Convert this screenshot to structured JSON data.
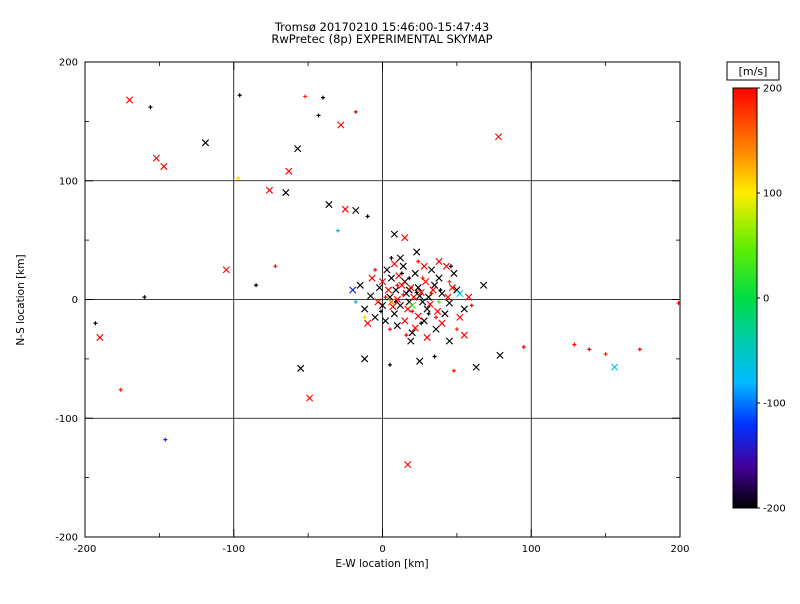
{
  "page": {
    "background": "#ffffff"
  },
  "chart_data": {
    "type": "scatter",
    "title": "Tromsø 20170210 15:46:00-15:47:43",
    "subtitle": "RwPretec (8p) EXPERIMENTAL SKYMAP",
    "xlabel": "E-W location [km]",
    "ylabel": "N-S location [km]",
    "xlim": [
      -200,
      200
    ],
    "ylim": [
      -200,
      200
    ],
    "xticks": [
      -200,
      -100,
      0,
      100,
      200
    ],
    "yticks": [
      -200,
      -100,
      0,
      100,
      200
    ],
    "minor_tick_step": 50,
    "grid_lines": [
      -100,
      0,
      100
    ],
    "grid": true,
    "axis_color": "#000000",
    "colorbar": {
      "label": "[m/s]",
      "min": -200,
      "max": 200,
      "ticks": [
        200,
        100,
        0,
        -100,
        -200
      ],
      "text_color": "#cc0000",
      "stops": [
        {
          "t": -200,
          "c": "#000000"
        },
        {
          "t": -160,
          "c": "#44009a"
        },
        {
          "t": -120,
          "c": "#0033ff"
        },
        {
          "t": -80,
          "c": "#00bbff"
        },
        {
          "t": -40,
          "c": "#00ccaa"
        },
        {
          "t": 0,
          "c": "#00dd44"
        },
        {
          "t": 50,
          "c": "#66ee00"
        },
        {
          "t": 100,
          "c": "#ffee00"
        },
        {
          "t": 140,
          "c": "#ff8800"
        },
        {
          "t": 200,
          "c": "#ff0000"
        }
      ]
    },
    "points": [
      [
        5,
        2,
        -200,
        "x"
      ],
      [
        12,
        -5,
        -200,
        "x"
      ],
      [
        18,
        8,
        -200,
        "x"
      ],
      [
        25,
        3,
        -200,
        "x"
      ],
      [
        8,
        -12,
        -200,
        "x"
      ],
      [
        30,
        -8,
        -200,
        "x"
      ],
      [
        15,
        15,
        -200,
        "x"
      ],
      [
        22,
        22,
        -200,
        "x"
      ],
      [
        -2,
        10,
        -200,
        "x"
      ],
      [
        35,
        12,
        -200,
        "x"
      ],
      [
        10,
        -22,
        -200,
        "x"
      ],
      [
        28,
        -18,
        -200,
        "x"
      ],
      [
        40,
        5,
        -200,
        "x"
      ],
      [
        0,
        -5,
        -200,
        "x"
      ],
      [
        18,
        -2,
        -200,
        "x"
      ],
      [
        24,
        10,
        -200,
        "x"
      ],
      [
        6,
        18,
        -200,
        "x"
      ],
      [
        33,
        25,
        -200,
        "x"
      ],
      [
        14,
        28,
        -200,
        "x"
      ],
      [
        -8,
        3,
        -200,
        "x"
      ],
      [
        45,
        -3,
        -200,
        "x"
      ],
      [
        38,
        18,
        -200,
        "x"
      ],
      [
        2,
        -18,
        -200,
        "x"
      ],
      [
        20,
        -28,
        -200,
        "x"
      ],
      [
        -12,
        -8,
        -200,
        "x"
      ],
      [
        50,
        8,
        -200,
        "x"
      ],
      [
        27,
        -2,
        -200,
        "x"
      ],
      [
        16,
        5,
        -200,
        "x"
      ],
      [
        9,
        8,
        -200,
        "x"
      ],
      [
        31,
        2,
        -200,
        "x"
      ],
      [
        -5,
        -15,
        -200,
        "x"
      ],
      [
        42,
        -12,
        -200,
        "x"
      ],
      [
        36,
        -25,
        -200,
        "x"
      ],
      [
        12,
        35,
        -200,
        "x"
      ],
      [
        23,
        40,
        -200,
        "x"
      ],
      [
        -15,
        12,
        -200,
        "x"
      ],
      [
        55,
        -8,
        -200,
        "x"
      ],
      [
        48,
        22,
        -200,
        "x"
      ],
      [
        3,
        25,
        -200,
        "x"
      ],
      [
        19,
        -35,
        -200,
        "x"
      ],
      [
        8,
        55,
        -200,
        "x"
      ],
      [
        45,
        -35,
        -200,
        "x"
      ],
      [
        -12,
        -50,
        -200,
        "x"
      ],
      [
        25,
        -52,
        -200,
        "x"
      ],
      [
        63,
        -57,
        -200,
        "x"
      ],
      [
        68,
        12,
        -200,
        "x"
      ],
      [
        10,
        0,
        200,
        "x"
      ],
      [
        17,
        -8,
        200,
        "x"
      ],
      [
        26,
        6,
        200,
        "x"
      ],
      [
        13,
        12,
        200,
        "x"
      ],
      [
        32,
        -4,
        200,
        "x"
      ],
      [
        7,
        -6,
        200,
        "x"
      ],
      [
        21,
        2,
        200,
        "x"
      ],
      [
        29,
        15,
        200,
        "x"
      ],
      [
        4,
        8,
        200,
        "x"
      ],
      [
        37,
        -10,
        200,
        "x"
      ],
      [
        15,
        -18,
        200,
        "x"
      ],
      [
        44,
        2,
        200,
        "x"
      ],
      [
        24,
        -14,
        200,
        "x"
      ],
      [
        -3,
        -2,
        200,
        "x"
      ],
      [
        34,
        8,
        200,
        "x"
      ],
      [
        11,
        20,
        200,
        "x"
      ],
      [
        40,
        -20,
        200,
        "x"
      ],
      [
        19,
        10,
        200,
        "x"
      ],
      [
        28,
        28,
        200,
        "x"
      ],
      [
        -7,
        18,
        200,
        "x"
      ],
      [
        52,
        -15,
        200,
        "x"
      ],
      [
        47,
        10,
        200,
        "x"
      ],
      [
        0,
        15,
        200,
        "x"
      ],
      [
        22,
        -24,
        200,
        "x"
      ],
      [
        38,
        32,
        200,
        "x"
      ],
      [
        -10,
        -20,
        200,
        "x"
      ],
      [
        58,
        2,
        200,
        "x"
      ],
      [
        30,
        -32,
        200,
        "x"
      ],
      [
        8,
        30,
        200,
        "x"
      ],
      [
        43,
        28,
        200,
        "x"
      ],
      [
        15,
        52,
        200,
        "x"
      ],
      [
        55,
        -30,
        200,
        "x"
      ],
      [
        14,
        4,
        195,
        "+"
      ],
      [
        20,
        -10,
        200,
        "+"
      ],
      [
        27,
        18,
        185,
        "+"
      ],
      [
        5,
        -25,
        200,
        "+"
      ],
      [
        33,
        5,
        195,
        "+"
      ],
      [
        10,
        12,
        200,
        "+"
      ],
      [
        45,
        15,
        185,
        "+"
      ],
      [
        16,
        -30,
        200,
        "+"
      ],
      [
        24,
        32,
        195,
        "+"
      ],
      [
        -5,
        25,
        200,
        "+"
      ],
      [
        50,
        -25,
        185,
        "+"
      ],
      [
        36,
        -15,
        200,
        "+"
      ],
      [
        2,
        2,
        195,
        "+"
      ],
      [
        60,
        -5,
        200,
        "+"
      ],
      [
        48,
        -60,
        190,
        "+"
      ],
      [
        9,
        -2,
        -200,
        "+"
      ],
      [
        23,
        6,
        -200,
        "+"
      ],
      [
        31,
        -12,
        -200,
        "+"
      ],
      [
        13,
        22,
        -200,
        "+"
      ],
      [
        39,
        8,
        -200,
        "+"
      ],
      [
        -1,
        -10,
        -200,
        "+"
      ],
      [
        46,
        28,
        -200,
        "+"
      ],
      [
        18,
        18,
        -200,
        "+"
      ],
      [
        26,
        -20,
        -200,
        "+"
      ],
      [
        6,
        35,
        -200,
        "+"
      ],
      [
        5,
        -55,
        -200,
        "+"
      ],
      [
        35,
        -48,
        -200,
        "+"
      ],
      [
        52,
        5,
        -80,
        "x"
      ],
      [
        -18,
        -2,
        -70,
        "+"
      ],
      [
        20,
        -5,
        25,
        "x"
      ],
      [
        -12,
        -15,
        110,
        "+"
      ],
      [
        38,
        -2,
        40,
        "+"
      ],
      [
        -20,
        8,
        -130,
        "x"
      ],
      [
        6,
        -2,
        150,
        "x"
      ],
      [
        -170,
        168,
        200,
        "x"
      ],
      [
        -156,
        162,
        -200,
        "+"
      ],
      [
        -119,
        132,
        -200,
        "x"
      ],
      [
        -152,
        119,
        200,
        "x"
      ],
      [
        -147,
        112,
        200,
        "x"
      ],
      [
        -96,
        172,
        -200,
        "+"
      ],
      [
        -40,
        170,
        -200,
        "+"
      ],
      [
        -52,
        171,
        185,
        "+"
      ],
      [
        -43,
        155,
        -200,
        "+"
      ],
      [
        -28,
        147,
        200,
        "x"
      ],
      [
        78,
        137,
        200,
        "x"
      ],
      [
        -97,
        102,
        110,
        "+"
      ],
      [
        -76,
        92,
        200,
        "x"
      ],
      [
        -65,
        90,
        -200,
        "x"
      ],
      [
        -57,
        127,
        -200,
        "x"
      ],
      [
        -63,
        108,
        200,
        "x"
      ],
      [
        -36,
        80,
        -200,
        "x"
      ],
      [
        -25,
        76,
        200,
        "x"
      ],
      [
        -18,
        75,
        -200,
        "x"
      ],
      [
        -10,
        70,
        -200,
        "+"
      ],
      [
        -30,
        58,
        -75,
        "+"
      ],
      [
        -18,
        158,
        200,
        "+"
      ],
      [
        -105,
        25,
        200,
        "x"
      ],
      [
        -160,
        2,
        -200,
        "+"
      ],
      [
        -193,
        -20,
        -200,
        "+"
      ],
      [
        -190,
        -32,
        200,
        "x"
      ],
      [
        -176,
        -76,
        185,
        "+"
      ],
      [
        -146,
        -118,
        -120,
        "+"
      ],
      [
        -49,
        -83,
        200,
        "x"
      ],
      [
        -55,
        -58,
        -200,
        "x"
      ],
      [
        17,
        -139,
        200,
        "x"
      ],
      [
        79,
        -47,
        -200,
        "x"
      ],
      [
        95,
        -40,
        200,
        "+"
      ],
      [
        129,
        -38,
        200,
        "+"
      ],
      [
        139,
        -42,
        200,
        "+"
      ],
      [
        150,
        -46,
        185,
        "+"
      ],
      [
        156,
        -57,
        -80,
        "x"
      ],
      [
        173,
        -42,
        200,
        "+"
      ],
      [
        199,
        -3,
        200,
        "+"
      ],
      [
        -72,
        28,
        190,
        "+"
      ],
      [
        -85,
        12,
        -200,
        "+"
      ]
    ]
  }
}
